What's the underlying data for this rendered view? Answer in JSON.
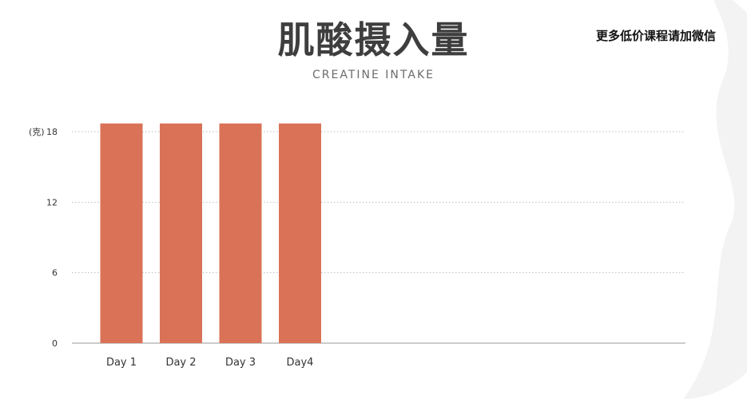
{
  "header": {
    "title": "肌酸摄入量",
    "subtitle": "CREATINE INTAKE",
    "promo": "更多低价课程请加微信"
  },
  "colors": {
    "bar": "#d97257",
    "grid": "#bdbdbd",
    "axis": "#9a9a9a"
  },
  "chart_data": {
    "type": "bar",
    "categories": [
      "Day 1",
      "Day 2",
      "Day 3",
      "Day4"
    ],
    "values": [
      18.7,
      18.7,
      18.7,
      18.7
    ],
    "ylabel": "(克)",
    "yticks": [
      0,
      6,
      12,
      18
    ],
    "ylim": [
      0,
      18.7
    ],
    "grid": true
  }
}
